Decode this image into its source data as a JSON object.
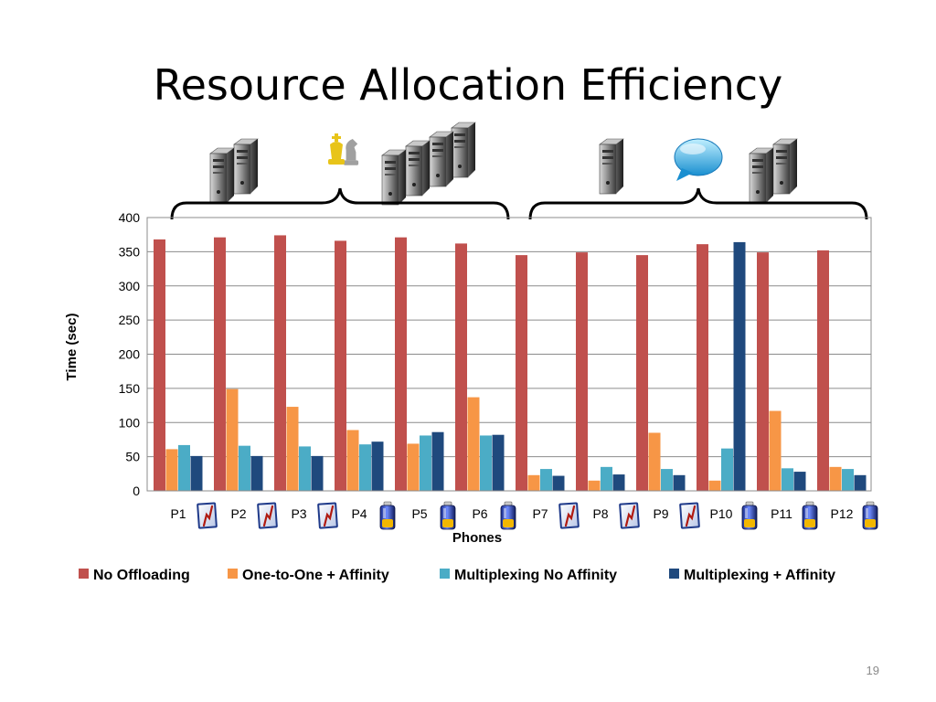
{
  "slide": {
    "title": "Resource Allocation Efficiency",
    "page_number": "19"
  },
  "icons": {
    "group_left": [
      "server-pair-icon",
      "chess-pieces-icon",
      "server-rack-icon"
    ],
    "group_right": [
      "single-server-icon",
      "speech-bubble-icon",
      "server-pair-icon"
    ]
  },
  "chart_data": {
    "type": "bar",
    "title": "",
    "xlabel": "Phones",
    "ylabel": "Time (sec)",
    "ylim": [
      0,
      400
    ],
    "yticks": [
      0,
      50,
      100,
      150,
      200,
      250,
      300,
      350,
      400
    ],
    "grid": true,
    "legend_position": "bottom",
    "categories": [
      "P1",
      "P2",
      "P3",
      "P4",
      "P5",
      "P6",
      "P7",
      "P8",
      "P9",
      "P10",
      "P11",
      "P12"
    ],
    "category_icons": [
      "app-icon",
      "app-icon",
      "app-icon",
      "battery-icon",
      "battery-icon",
      "battery-icon",
      "app-icon",
      "app-icon",
      "app-icon",
      "battery-icon",
      "battery-icon",
      "battery-icon"
    ],
    "series": [
      {
        "name": "No Offloading",
        "color": "#C0504D",
        "values": [
          368,
          371,
          374,
          366,
          371,
          362,
          345,
          349,
          345,
          361,
          349,
          352
        ]
      },
      {
        "name": "One-to-One + Affinity",
        "color": "#F79646",
        "values": [
          61,
          149,
          123,
          89,
          69,
          137,
          23,
          15,
          85,
          15,
          117,
          35
        ]
      },
      {
        "name": "Multiplexing No Affinity",
        "color": "#4BACC6",
        "values": [
          67,
          66,
          65,
          68,
          81,
          81,
          32,
          35,
          32,
          62,
          33,
          32
        ]
      },
      {
        "name": "Multiplexing + Affinity",
        "color": "#1F497D",
        "values": [
          51,
          51,
          51,
          72,
          86,
          82,
          22,
          24,
          23,
          364,
          28,
          23
        ]
      }
    ]
  }
}
